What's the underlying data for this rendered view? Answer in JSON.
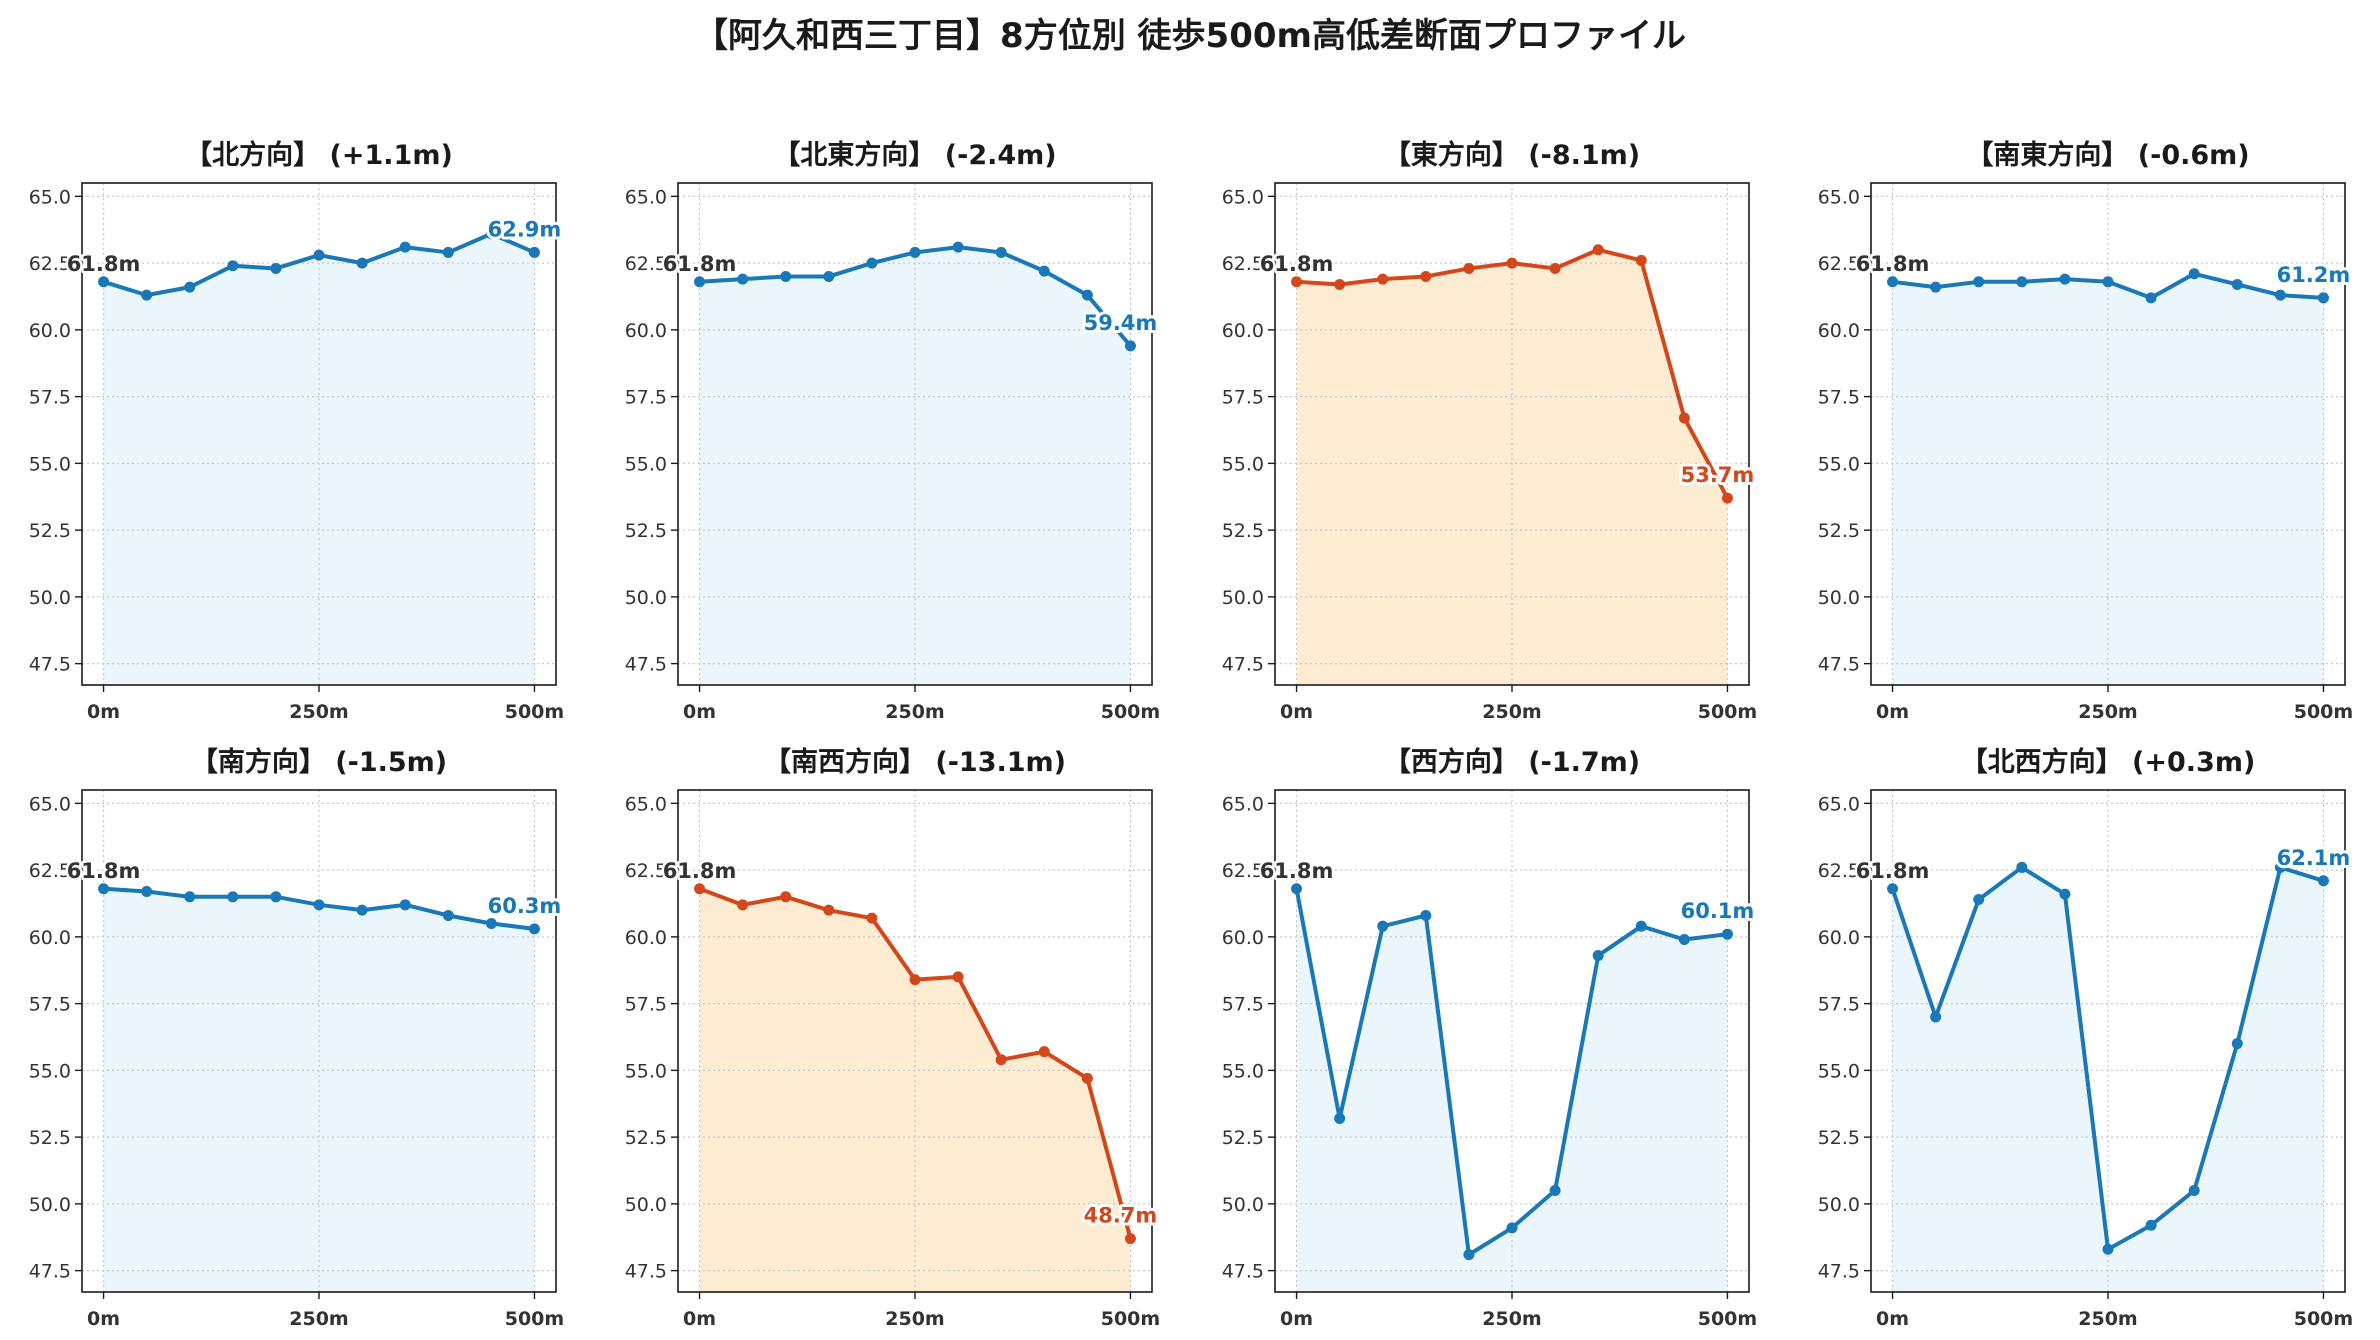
{
  "title": "【阿久和西三丁目】8方位別 徒歩500m高低差断面プロファイル",
  "colors": {
    "normal_line": "#1a78b8",
    "normal_fill": "#eaf6fb",
    "steep_line": "#d4471a",
    "steep_fill": "#fdecd2",
    "grid": "#c8c8c8",
    "start_label": "#333333"
  },
  "chart_data": [
    {
      "type": "area",
      "direction": "北方向",
      "title": "【北方向】 (+1.1m)",
      "highlight": false,
      "x": [
        0,
        50,
        100,
        150,
        200,
        250,
        300,
        350,
        400,
        450,
        500
      ],
      "y": [
        61.8,
        61.3,
        61.6,
        62.4,
        62.3,
        62.8,
        62.5,
        63.1,
        62.9,
        63.6,
        62.9
      ],
      "start_label": "61.8m",
      "end_label": "62.9m"
    },
    {
      "type": "area",
      "direction": "北東方向",
      "title": "【北東方向】 (-2.4m)",
      "highlight": false,
      "x": [
        0,
        50,
        100,
        150,
        200,
        250,
        300,
        350,
        400,
        450,
        500
      ],
      "y": [
        61.8,
        61.9,
        62.0,
        62.0,
        62.5,
        62.9,
        63.1,
        62.9,
        62.2,
        61.3,
        59.4
      ],
      "start_label": "61.8m",
      "end_label": "59.4m"
    },
    {
      "type": "area",
      "direction": "東方向",
      "title": "【東方向】 (-8.1m)",
      "highlight": true,
      "x": [
        0,
        50,
        100,
        150,
        200,
        250,
        300,
        350,
        400,
        450,
        500
      ],
      "y": [
        61.8,
        61.7,
        61.9,
        62.0,
        62.3,
        62.5,
        62.3,
        63.0,
        62.6,
        56.7,
        53.7
      ],
      "start_label": "61.8m",
      "end_label": "53.7m"
    },
    {
      "type": "area",
      "direction": "南東方向",
      "title": "【南東方向】 (-0.6m)",
      "highlight": false,
      "x": [
        0,
        50,
        100,
        150,
        200,
        250,
        300,
        350,
        400,
        450,
        500
      ],
      "y": [
        61.8,
        61.6,
        61.8,
        61.8,
        61.9,
        61.8,
        61.2,
        62.1,
        61.7,
        61.3,
        61.2
      ],
      "start_label": "61.8m",
      "end_label": "61.2m"
    },
    {
      "type": "area",
      "direction": "南方向",
      "title": "【南方向】 (-1.5m)",
      "highlight": false,
      "x": [
        0,
        50,
        100,
        150,
        200,
        250,
        300,
        350,
        400,
        450,
        500
      ],
      "y": [
        61.8,
        61.7,
        61.5,
        61.5,
        61.5,
        61.2,
        61.0,
        61.2,
        60.8,
        60.5,
        60.3
      ],
      "start_label": "61.8m",
      "end_label": "60.3m"
    },
    {
      "type": "area",
      "direction": "南西方向",
      "title": "【南西方向】 (-13.1m)",
      "highlight": true,
      "x": [
        0,
        50,
        100,
        150,
        200,
        250,
        300,
        350,
        400,
        450,
        500
      ],
      "y": [
        61.8,
        61.2,
        61.5,
        61.0,
        60.7,
        58.4,
        58.5,
        55.4,
        55.7,
        54.7,
        48.7
      ],
      "start_label": "61.8m",
      "end_label": "48.7m"
    },
    {
      "type": "area",
      "direction": "西方向",
      "title": "【西方向】 (-1.7m)",
      "highlight": false,
      "x": [
        0,
        50,
        100,
        150,
        200,
        250,
        300,
        350,
        400,
        450,
        500
      ],
      "y": [
        61.8,
        53.2,
        60.4,
        60.8,
        48.1,
        49.1,
        50.5,
        59.3,
        60.4,
        59.9,
        60.1
      ],
      "start_label": "61.8m",
      "end_label": "60.1m"
    },
    {
      "type": "area",
      "direction": "北西方向",
      "title": "【北西方向】 (+0.3m)",
      "highlight": false,
      "x": [
        0,
        50,
        100,
        150,
        200,
        250,
        300,
        350,
        400,
        450,
        500
      ],
      "y": [
        61.8,
        57.0,
        61.4,
        62.6,
        61.6,
        48.3,
        49.2,
        50.5,
        56.0,
        62.6,
        62.1
      ],
      "start_label": "61.8m",
      "end_label": "62.1m"
    }
  ],
  "axes": {
    "ylim": [
      46.7,
      65.5
    ],
    "yticks": [
      47.5,
      50.0,
      52.5,
      55.0,
      57.5,
      60.0,
      62.5,
      65.0
    ],
    "ytick_labels": [
      "47.5",
      "50.0",
      "52.5",
      "55.0",
      "57.5",
      "60.0",
      "62.5",
      "65.0"
    ],
    "xlim": [
      -25,
      525
    ],
    "xticks": [
      0,
      250,
      500
    ],
    "xtick_labels": [
      "0m",
      "250m",
      "500m"
    ],
    "grid": true
  }
}
